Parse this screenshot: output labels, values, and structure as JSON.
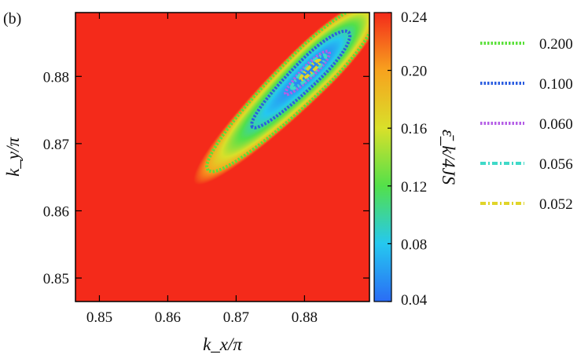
{
  "panel_label": "(b)",
  "chart_data": {
    "type": "heatmap",
    "x_axis": {
      "label": "k_x/π",
      "range": [
        0.8465,
        0.8895
      ],
      "ticks": [
        0.85,
        0.86,
        0.87,
        0.88
      ],
      "tick_labels": [
        "0.85",
        "0.86",
        "0.87",
        "0.88"
      ]
    },
    "y_axis": {
      "label": "k_y/π",
      "range": [
        0.8465,
        0.8895
      ],
      "ticks": [
        0.85,
        0.86,
        0.87,
        0.88
      ],
      "tick_labels": [
        "0.85",
        "0.86",
        "0.87",
        "0.88"
      ]
    },
    "colorbar": {
      "label": "ε̄_k/4JS",
      "range": [
        0.04,
        0.24
      ],
      "ticks": [
        0.04,
        0.08,
        0.12,
        0.16,
        0.2,
        0.24
      ],
      "tick_labels": [
        "0.04",
        "0.08",
        "0.12",
        "0.16",
        "0.20",
        "0.24"
      ],
      "colormap": [
        "#2a6cf5",
        "#25c8f0",
        "#53e04a",
        "#d9e02a",
        "#f7a21e",
        "#f42a1a"
      ]
    },
    "field": {
      "minimum": 0.05,
      "minimum_at": [
        0.8812,
        0.8813
      ],
      "diagonal_offset": 0.0
    },
    "contours": [
      {
        "level": 0.2,
        "label": "0.200",
        "color": "#5ae03a",
        "style": "dotted"
      },
      {
        "level": 0.1,
        "label": "0.100",
        "color": "#2b5de0",
        "style": "dotted"
      },
      {
        "level": 0.06,
        "label": "0.060",
        "color": "#b45ee6",
        "style": "dotted"
      },
      {
        "level": 0.056,
        "label": "0.056",
        "color": "#40d9c8",
        "style": "dash-dot"
      },
      {
        "level": 0.052,
        "label": "0.052",
        "color": "#e0d42a",
        "style": "dash-dot"
      }
    ]
  }
}
